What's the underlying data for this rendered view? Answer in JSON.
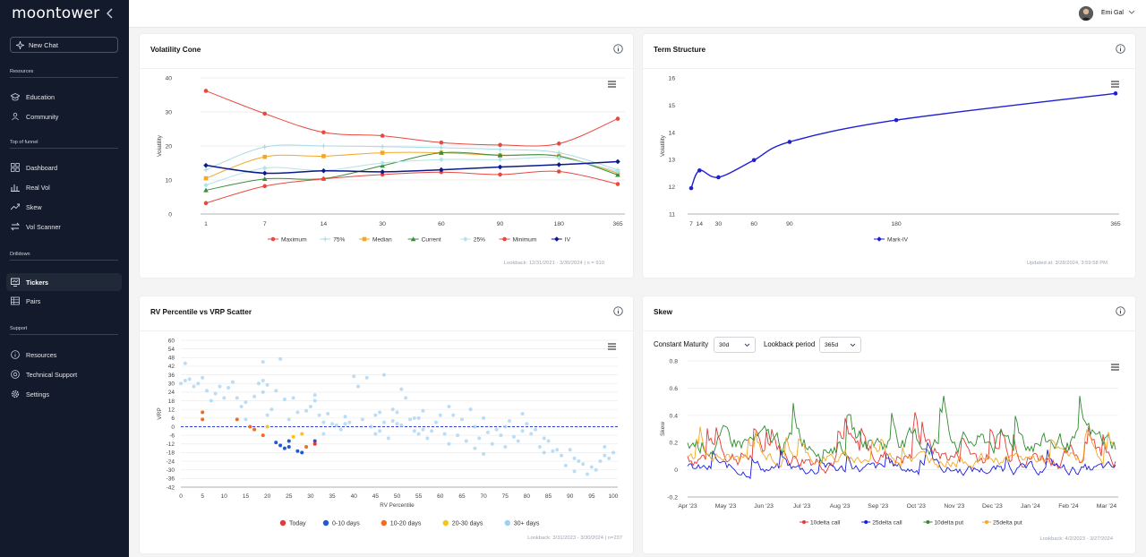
{
  "app": {
    "logo": "moontower",
    "user_name": "Emi Gal"
  },
  "sidebar": {
    "new_chat": "New Chat",
    "sections": [
      {
        "title": "Resources",
        "items": [
          {
            "label": "Education",
            "icon": "graduation-cap-icon"
          },
          {
            "label": "Community",
            "icon": "users-icon"
          }
        ]
      },
      {
        "title": "Top of funnel",
        "items": [
          {
            "label": "Dashboard",
            "icon": "grid-icon"
          },
          {
            "label": "Real Vol",
            "icon": "bar-chart-icon"
          },
          {
            "label": "Skew",
            "icon": "trend-icon"
          },
          {
            "label": "Vol Scanner",
            "icon": "arrows-icon"
          }
        ]
      },
      {
        "title": "Drilldown",
        "items": [
          {
            "label": "Tickers",
            "icon": "ticker-icon",
            "active": true
          },
          {
            "label": "Pairs",
            "icon": "table-icon"
          }
        ]
      },
      {
        "title": "Support",
        "items": [
          {
            "label": "Resources",
            "icon": "info-icon"
          },
          {
            "label": "Technical Support",
            "icon": "lifebuoy-icon"
          },
          {
            "label": "Settings",
            "icon": "gear-icon"
          }
        ]
      }
    ]
  },
  "cards": {
    "vol_cone": {
      "title": "Volatility Cone",
      "footnote": "Lookback: 12/31/2021 - 3/30/2024 | n = 910"
    },
    "term_structure": {
      "title": "Term Structure",
      "footnote": "Updated at: 3/28/2024, 3:59:58 PM"
    },
    "rv_scatter": {
      "title": "RV Percentile vs VRP Scatter",
      "footnote": "Lookback: 3/31/2023 - 3/30/2024 | n=237"
    },
    "skew": {
      "title": "Skew",
      "footnote": "Lookback: 4/2/2023 - 3/27/2024",
      "maturity_label": "Constant Maturity",
      "maturity_value": "30d",
      "lookback_label": "Lookback period",
      "lookback_value": "365d"
    }
  },
  "chart_data": [
    {
      "id": "vol_cone",
      "type": "line",
      "title": "Volatility Cone",
      "ylabel": "Volatility",
      "ylim": [
        0,
        40
      ],
      "yticks": [
        0,
        10,
        20,
        30,
        40
      ],
      "categories": [
        "1",
        "7",
        "14",
        "30",
        "60",
        "90",
        "180",
        "365"
      ],
      "series": [
        {
          "name": "Maximum",
          "color": "#e8483f",
          "marker": "circle",
          "values": [
            36.2,
            29.5,
            24.0,
            23.0,
            21.0,
            20.3,
            20.7,
            28.0
          ]
        },
        {
          "name": "75%",
          "color": "#a8dbe6",
          "marker": "plus",
          "values": [
            13.0,
            19.7,
            20.0,
            19.8,
            19.5,
            19.0,
            18.0,
            13.0
          ]
        },
        {
          "name": "Median",
          "color": "#f5a623",
          "marker": "square",
          "values": [
            10.5,
            16.8,
            17.0,
            18.0,
            18.0,
            17.2,
            17.0,
            12.0
          ]
        },
        {
          "name": "Current",
          "color": "#3c8c3c",
          "marker": "triangle",
          "values": [
            7.0,
            10.3,
            10.4,
            14.2,
            18.0,
            17.3,
            17.0,
            11.5
          ]
        },
        {
          "name": "25%",
          "color": "#b3e3e8",
          "marker": "diamond",
          "values": [
            8.5,
            13.5,
            12.8,
            15.0,
            16.0,
            16.0,
            16.5,
            12.5
          ]
        },
        {
          "name": "Minimum",
          "color": "#e8483f",
          "marker": "circle",
          "values": [
            3.2,
            8.2,
            10.3,
            11.6,
            12.3,
            11.6,
            12.5,
            8.8
          ]
        },
        {
          "name": "IV",
          "color": "#0b1a8c",
          "marker": "diamond",
          "values": [
            14.3,
            12.0,
            12.7,
            12.4,
            13.0,
            13.8,
            14.5,
            15.4
          ]
        }
      ]
    },
    {
      "id": "term_structure",
      "type": "line",
      "title": "Term Structure",
      "ylabel": "Volatility",
      "ylim": [
        11,
        16
      ],
      "yticks": [
        11,
        12,
        13,
        14,
        15,
        16
      ],
      "xticks": [
        7,
        14,
        30,
        60,
        90,
        180,
        365
      ],
      "series": [
        {
          "name": "Mark-IV",
          "color": "#1f1fd6",
          "x": [
            7,
            14,
            30,
            60,
            90,
            180,
            365
          ],
          "y": [
            11.95,
            12.6,
            12.35,
            12.98,
            13.65,
            14.45,
            15.43
          ]
        }
      ]
    },
    {
      "id": "rv_scatter",
      "type": "scatter",
      "title": "RV Percentile vs VRP Scatter",
      "xlabel": "RV Percentile",
      "ylabel": "VRP",
      "xlim": [
        0,
        100
      ],
      "ylim": [
        -42,
        60
      ],
      "xticks": [
        0,
        5,
        10,
        15,
        20,
        25,
        30,
        35,
        40,
        45,
        50,
        55,
        60,
        65,
        70,
        75,
        80,
        85,
        90,
        95,
        100
      ],
      "yticks": [
        60,
        54,
        48,
        42,
        36,
        30,
        24,
        18,
        12,
        6,
        0,
        -6,
        -12,
        -18,
        -24,
        -30,
        -36,
        -42
      ],
      "series": [
        {
          "name": "Today",
          "color": "#e53935",
          "points": [
            [
              31,
              -12
            ]
          ]
        },
        {
          "name": "0-10 days",
          "color": "#2457d6",
          "points": [
            [
              22,
              -11
            ],
            [
              23,
              -13
            ],
            [
              24,
              -15
            ],
            [
              25,
              -10
            ],
            [
              25,
              -14
            ],
            [
              27,
              -17
            ],
            [
              28,
              -18
            ],
            [
              31,
              -10
            ]
          ]
        },
        {
          "name": "10-20 days",
          "color": "#f26b21",
          "points": [
            [
              5,
              10
            ],
            [
              5,
              5
            ],
            [
              13,
              5
            ],
            [
              16,
              0
            ],
            [
              17,
              -2
            ],
            [
              19,
              -6
            ],
            [
              29,
              -14
            ]
          ]
        },
        {
          "name": "20-30 days",
          "color": "#f5c518",
          "points": [
            [
              20,
              0
            ],
            [
              26,
              -7
            ],
            [
              28,
              -5
            ]
          ]
        },
        {
          "name": "30+ days",
          "color": "#9fcff0",
          "points": [
            [
              0,
              30
            ],
            [
              1,
              32
            ],
            [
              2,
              33
            ],
            [
              1,
              44
            ],
            [
              3,
              28
            ],
            [
              4,
              30
            ],
            [
              5,
              34
            ],
            [
              6,
              25
            ],
            [
              7,
              18
            ],
            [
              8,
              23
            ],
            [
              9,
              28
            ],
            [
              10,
              20
            ],
            [
              11,
              27
            ],
            [
              12,
              31
            ],
            [
              13,
              20
            ],
            [
              14,
              14
            ],
            [
              15,
              5
            ],
            [
              15,
              17
            ],
            [
              17,
              21
            ],
            [
              18,
              30
            ],
            [
              19,
              45
            ],
            [
              19,
              32
            ],
            [
              19,
              24
            ],
            [
              20,
              29
            ],
            [
              20,
              8
            ],
            [
              21,
              12
            ],
            [
              22,
              25
            ],
            [
              23,
              47
            ],
            [
              24,
              19
            ],
            [
              25,
              5
            ],
            [
              26,
              20
            ],
            [
              27,
              10
            ],
            [
              29,
              11
            ],
            [
              30,
              14
            ],
            [
              31,
              18
            ],
            [
              31,
              22
            ],
            [
              32,
              8
            ],
            [
              33,
              3
            ],
            [
              34,
              9
            ],
            [
              33,
              -5
            ],
            [
              35,
              2
            ],
            [
              36,
              1
            ],
            [
              37,
              -2
            ],
            [
              38,
              7
            ],
            [
              38,
              2
            ],
            [
              39,
              3
            ],
            [
              40,
              35
            ],
            [
              41,
              28
            ],
            [
              42,
              5
            ],
            [
              43,
              34
            ],
            [
              44,
              0
            ],
            [
              45,
              8
            ],
            [
              45,
              -5
            ],
            [
              46,
              -3
            ],
            [
              46,
              10
            ],
            [
              47,
              36
            ],
            [
              47,
              3
            ],
            [
              48,
              -8
            ],
            [
              49,
              4
            ],
            [
              49,
              12
            ],
            [
              50,
              10
            ],
            [
              50,
              2
            ],
            [
              51,
              26
            ],
            [
              51,
              1
            ],
            [
              52,
              20
            ],
            [
              53,
              5
            ],
            [
              54,
              6
            ],
            [
              54,
              -3
            ],
            [
              55,
              -5
            ],
            [
              55,
              6
            ],
            [
              56,
              11
            ],
            [
              56,
              -2
            ],
            [
              57,
              -8
            ],
            [
              58,
              -3
            ],
            [
              59,
              3
            ],
            [
              60,
              8
            ],
            [
              61,
              -5
            ],
            [
              62,
              14
            ],
            [
              62,
              -12
            ],
            [
              63,
              8
            ],
            [
              64,
              -6
            ],
            [
              65,
              5
            ],
            [
              66,
              -10
            ],
            [
              67,
              12
            ],
            [
              68,
              0
            ],
            [
              68,
              -15
            ],
            [
              69,
              -8
            ],
            [
              70,
              -19
            ],
            [
              70,
              6
            ],
            [
              71,
              -4
            ],
            [
              72,
              -12
            ],
            [
              73,
              -2
            ],
            [
              74,
              -6
            ],
            [
              75,
              -14
            ],
            [
              75,
              0
            ],
            [
              76,
              4
            ],
            [
              77,
              -7
            ],
            [
              78,
              -10
            ],
            [
              79,
              9
            ],
            [
              79,
              -3
            ],
            [
              80,
              2
            ],
            [
              81,
              -5
            ],
            [
              82,
              -2
            ],
            [
              83,
              -14
            ],
            [
              84,
              -8
            ],
            [
              84,
              -18
            ],
            [
              85,
              -10
            ],
            [
              86,
              -17
            ],
            [
              87,
              -16
            ],
            [
              88,
              -20
            ],
            [
              89,
              -27
            ],
            [
              90,
              -16
            ],
            [
              91,
              -22
            ],
            [
              91,
              -31
            ],
            [
              92,
              -24
            ],
            [
              93,
              -26
            ],
            [
              94,
              -33
            ],
            [
              95,
              -28
            ],
            [
              96,
              -30
            ],
            [
              97,
              -24
            ],
            [
              98,
              -14
            ],
            [
              98,
              -20
            ],
            [
              99,
              -22
            ],
            [
              100,
              -18
            ]
          ]
        }
      ],
      "reference_line": 0
    },
    {
      "id": "skew",
      "type": "line",
      "title": "Skew",
      "ylabel": "Skew",
      "ylim": [
        -0.2,
        0.8
      ],
      "yticks": [
        -0.2,
        0,
        0.2,
        0.4,
        0.6,
        0.8
      ],
      "xticks": [
        "Apr '23",
        "May '23",
        "Jun '23",
        "Jul '23",
        "Aug '23",
        "Sep '23",
        "Oct '23",
        "Nov '23",
        "Dec '23",
        "Jan '24",
        "Feb '24",
        "Mar '24"
      ],
      "series": [
        {
          "name": "10delta call",
          "color": "#e53935",
          "mean": 0.1,
          "amp": 0.1
        },
        {
          "name": "25delta call",
          "color": "#1a1ae0",
          "mean": 0.0,
          "amp": 0.06
        },
        {
          "name": "10delta put",
          "color": "#2e8b2e",
          "mean": 0.2,
          "amp": 0.12
        },
        {
          "name": "25delta put",
          "color": "#f5a623",
          "mean": 0.08,
          "amp": 0.07
        }
      ]
    }
  ]
}
